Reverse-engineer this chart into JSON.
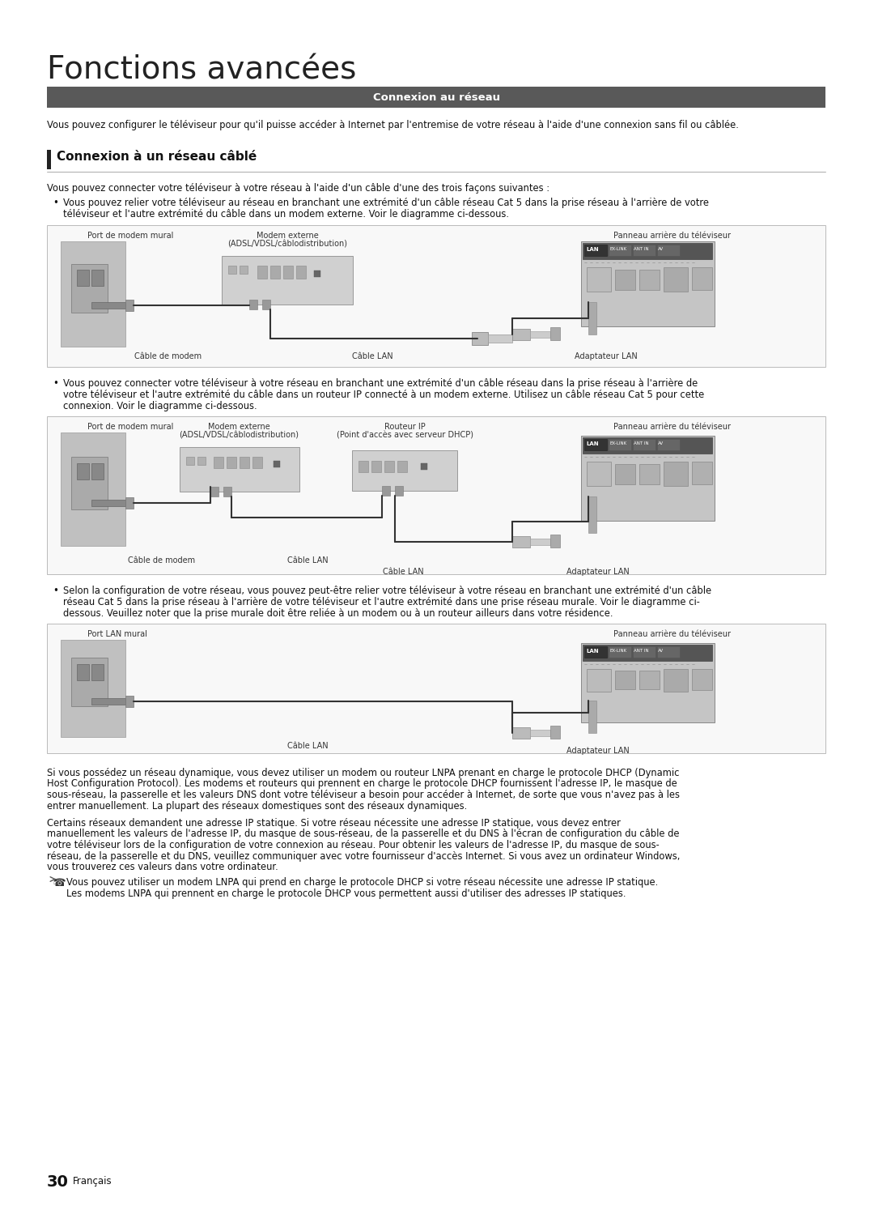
{
  "title": "Fonctions avancées",
  "section_header": "Connexion au réseau",
  "section_header_bg": "#595959",
  "section_header_color": "#ffffff",
  "subsection_header": "Connexion à un réseau câblé",
  "subsection_bar_color": "#222222",
  "intro_text": "Vous pouvez configurer le téléviseur pour qu'il puisse accéder à Internet par l'entremise de votre réseau à l'aide d'une connexion sans fil ou câblée.",
  "subsection_intro": "Vous pouvez connecter votre téléviseur à votre réseau à l'aide d'un câble d'une des trois façons suivantes :",
  "bullet1_line1": "Vous pouvez relier votre téléviseur au réseau en branchant une extrémité d'un câble réseau Cat 5 dans la prise réseau à l'arrière de votre",
  "bullet1_line2": "téléviseur et l'autre extrémité du câble dans un modem externe. Voir le diagramme ci-dessous.",
  "bullet2_line1": "Vous pouvez connecter votre téléviseur à votre réseau en branchant une extrémité d'un câble réseau dans la prise réseau à l'arrière de",
  "bullet2_line2": "votre téléviseur et l'autre extrémité du câble dans un routeur IP connecté à un modem externe. Utilisez un câble réseau Cat 5 pour cette",
  "bullet2_line3": "connexion. Voir le diagramme ci-dessous.",
  "bullet3_line1": "Selon la configuration de votre réseau, vous pouvez peut-être relier votre téléviseur à votre réseau en branchant une extrémité d'un câble",
  "bullet3_line2": "réseau Cat 5 dans la prise réseau à l'arrière de votre téléviseur et l'autre extrémité dans une prise réseau murale. Voir le diagramme ci-",
  "bullet3_line3": "dessous. Veuillez noter que la prise murale doit être reliée à un modem ou à un routeur ailleurs dans votre résidence.",
  "bottom_para1_lines": [
    "Si vous possédez un réseau dynamique, vous devez utiliser un modem ou routeur LNPA prenant en charge le protocole DHCP (Dynamic",
    "Host Configuration Protocol). Les modems et routeurs qui prennent en charge le protocole DHCP fournissent l'adresse IP, le masque de",
    "sous-réseau, la passerelle et les valeurs DNS dont votre téléviseur a besoin pour accéder à Internet, de sorte que vous n'avez pas à les",
    "entrer manuellement. La plupart des réseaux domestiques sont des réseaux dynamiques."
  ],
  "bottom_para2_lines": [
    "Certains réseaux demandent une adresse IP statique. Si votre réseau nécessite une adresse IP statique, vous devez entrer",
    "manuellement les valeurs de l'adresse IP, du masque de sous-réseau, de la passerelle et du DNS à l'écran de configuration du câble de",
    "votre téléviseur lors de la configuration de votre connexion au réseau. Pour obtenir les valeurs de l'adresse IP, du masque de sous-",
    "réseau, de la passerelle et du DNS, veuillez communiquer avec votre fournisseur d'accès Internet. Si vous avez un ordinateur Windows,",
    "vous trouverez ces valeurs dans votre ordinateur."
  ],
  "note_lines": [
    "Vous pouvez utiliser un modem LNPA qui prend en charge le protocole DHCP si votre réseau nécessite une adresse IP statique.",
    "Les modems LNPA qui prennent en charge le protocole DHCP vous permettent aussi d'utiliser des adresses IP statiques."
  ],
  "page_number": "30",
  "page_lang": "Français",
  "bg_color": "#ffffff",
  "text_color": "#111111",
  "light_gray": "#cccccc",
  "mid_gray": "#888888",
  "dark_gray": "#555555",
  "diagram_bg": "#f8f8f8",
  "diagram_border": "#bbbbbb",
  "wall_color": "#aaaaaa",
  "device_color": "#bbbbbb",
  "port_dark": "#444444",
  "lan_bar_color": "#333333"
}
